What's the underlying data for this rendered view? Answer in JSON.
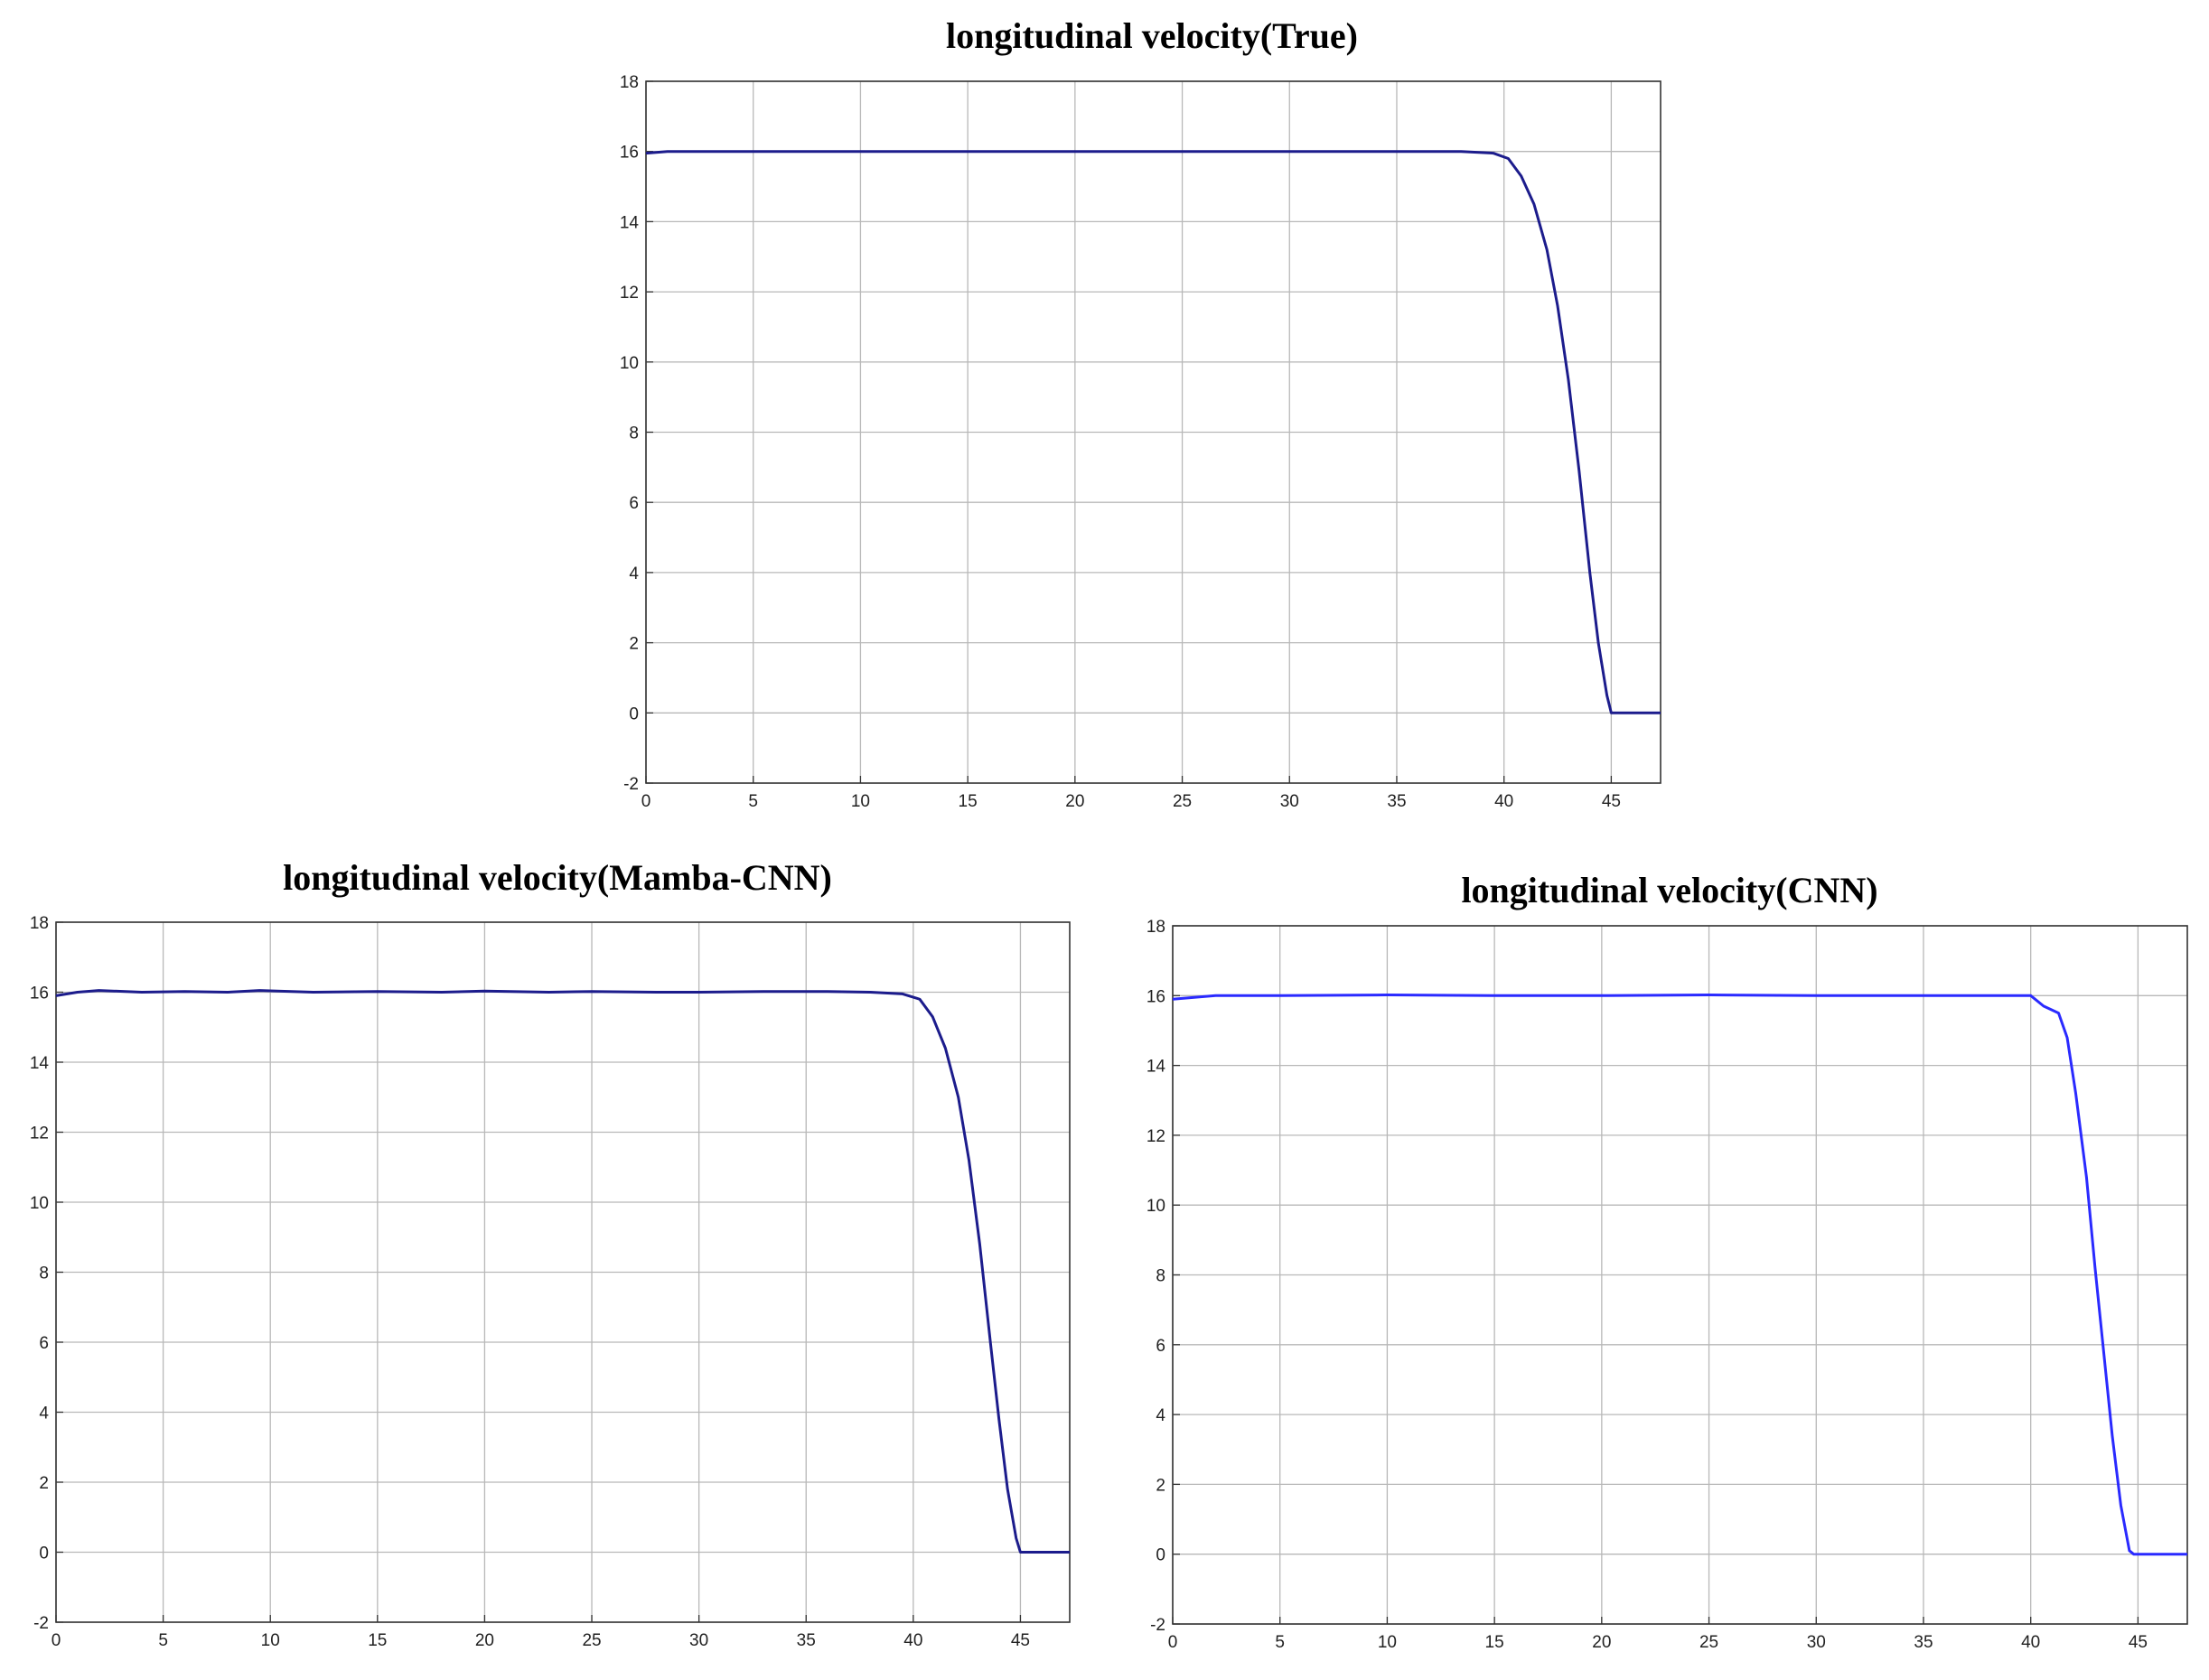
{
  "chart_data": [
    {
      "type": "line",
      "title": "longitudinal velocity(True)",
      "xlim": [
        0,
        47.3
      ],
      "ylim": [
        -2,
        18
      ],
      "x_ticks": [
        "0",
        "5",
        "10",
        "15",
        "20",
        "25",
        "30",
        "35",
        "40",
        "45"
      ],
      "y_ticks": [
        "-2",
        "0",
        "2",
        "4",
        "6",
        "8",
        "10",
        "12",
        "14",
        "16",
        "18"
      ],
      "grid": true,
      "colors": {
        "line": "#1c1c8c",
        "grid": "#b8b8b8",
        "axes": "#333333"
      },
      "series": [
        {
          "x": [
            0,
            1,
            5,
            10,
            20,
            30,
            38,
            39.5,
            40.2,
            40.8,
            41.4,
            42,
            42.5,
            43,
            43.5,
            44,
            44.4,
            44.8,
            45.0,
            45.3,
            47.3
          ],
          "y": [
            15.95,
            16.0,
            16.0,
            16.0,
            16.0,
            16.0,
            16.0,
            15.95,
            15.8,
            15.3,
            14.5,
            13.2,
            11.6,
            9.5,
            6.9,
            4.0,
            2.0,
            0.5,
            0.0,
            0.0,
            0.0
          ]
        }
      ]
    },
    {
      "type": "line",
      "title": "longitudinal velocity(Mamba-CNN)",
      "xlim": [
        0,
        47.3
      ],
      "ylim": [
        -2,
        18
      ],
      "x_ticks": [
        "0",
        "5",
        "10",
        "15",
        "20",
        "25",
        "30",
        "35",
        "40",
        "45"
      ],
      "y_ticks": [
        "-2",
        "0",
        "2",
        "4",
        "6",
        "8",
        "10",
        "12",
        "14",
        "16",
        "18"
      ],
      "grid": true,
      "colors": {
        "line": "#1c1c8c",
        "grid": "#b8b8b8",
        "axes": "#333333"
      },
      "series": [
        {
          "x": [
            0,
            1,
            2,
            4,
            6,
            8,
            9.5,
            12,
            15,
            18,
            20,
            23,
            25,
            28,
            30,
            33,
            36,
            38,
            39.5,
            40.3,
            40.9,
            41.5,
            42.1,
            42.6,
            43.1,
            43.6,
            44.0,
            44.4,
            44.8,
            45.0,
            45.3,
            47.3
          ],
          "y": [
            15.9,
            16.0,
            16.05,
            16.0,
            16.02,
            16.0,
            16.05,
            16.0,
            16.02,
            16.0,
            16.03,
            16.0,
            16.02,
            16.0,
            16.0,
            16.02,
            16.02,
            16.0,
            15.95,
            15.8,
            15.3,
            14.4,
            13.0,
            11.2,
            8.8,
            6.0,
            3.8,
            1.8,
            0.4,
            0.0,
            0.0,
            0.0
          ]
        }
      ]
    },
    {
      "type": "line",
      "title": "longitudinal velocity(CNN)",
      "xlim": [
        0,
        47.3
      ],
      "ylim": [
        -2,
        18
      ],
      "x_ticks": [
        "0",
        "5",
        "10",
        "15",
        "20",
        "25",
        "30",
        "35",
        "40",
        "45"
      ],
      "y_ticks": [
        "-2",
        "0",
        "2",
        "4",
        "6",
        "8",
        "10",
        "12",
        "14",
        "16",
        "18"
      ],
      "grid": true,
      "colors": {
        "line": "#2a2aff",
        "grid": "#b8b8b8",
        "axes": "#333333"
      },
      "series": [
        {
          "x": [
            0,
            1,
            2,
            5,
            10,
            15,
            20,
            25,
            30,
            35,
            39,
            40.0,
            40.6,
            41.3,
            41.7,
            42.1,
            42.6,
            43.0,
            43.4,
            43.8,
            44.2,
            44.6,
            44.8,
            45.2,
            47.3
          ],
          "y": [
            15.9,
            15.95,
            16.0,
            16.0,
            16.02,
            16.0,
            16.0,
            16.02,
            16.0,
            16.0,
            16.0,
            16.0,
            15.7,
            15.5,
            14.8,
            13.2,
            10.8,
            8.2,
            5.8,
            3.4,
            1.4,
            0.1,
            0.0,
            0.0,
            0.0
          ]
        }
      ]
    }
  ]
}
